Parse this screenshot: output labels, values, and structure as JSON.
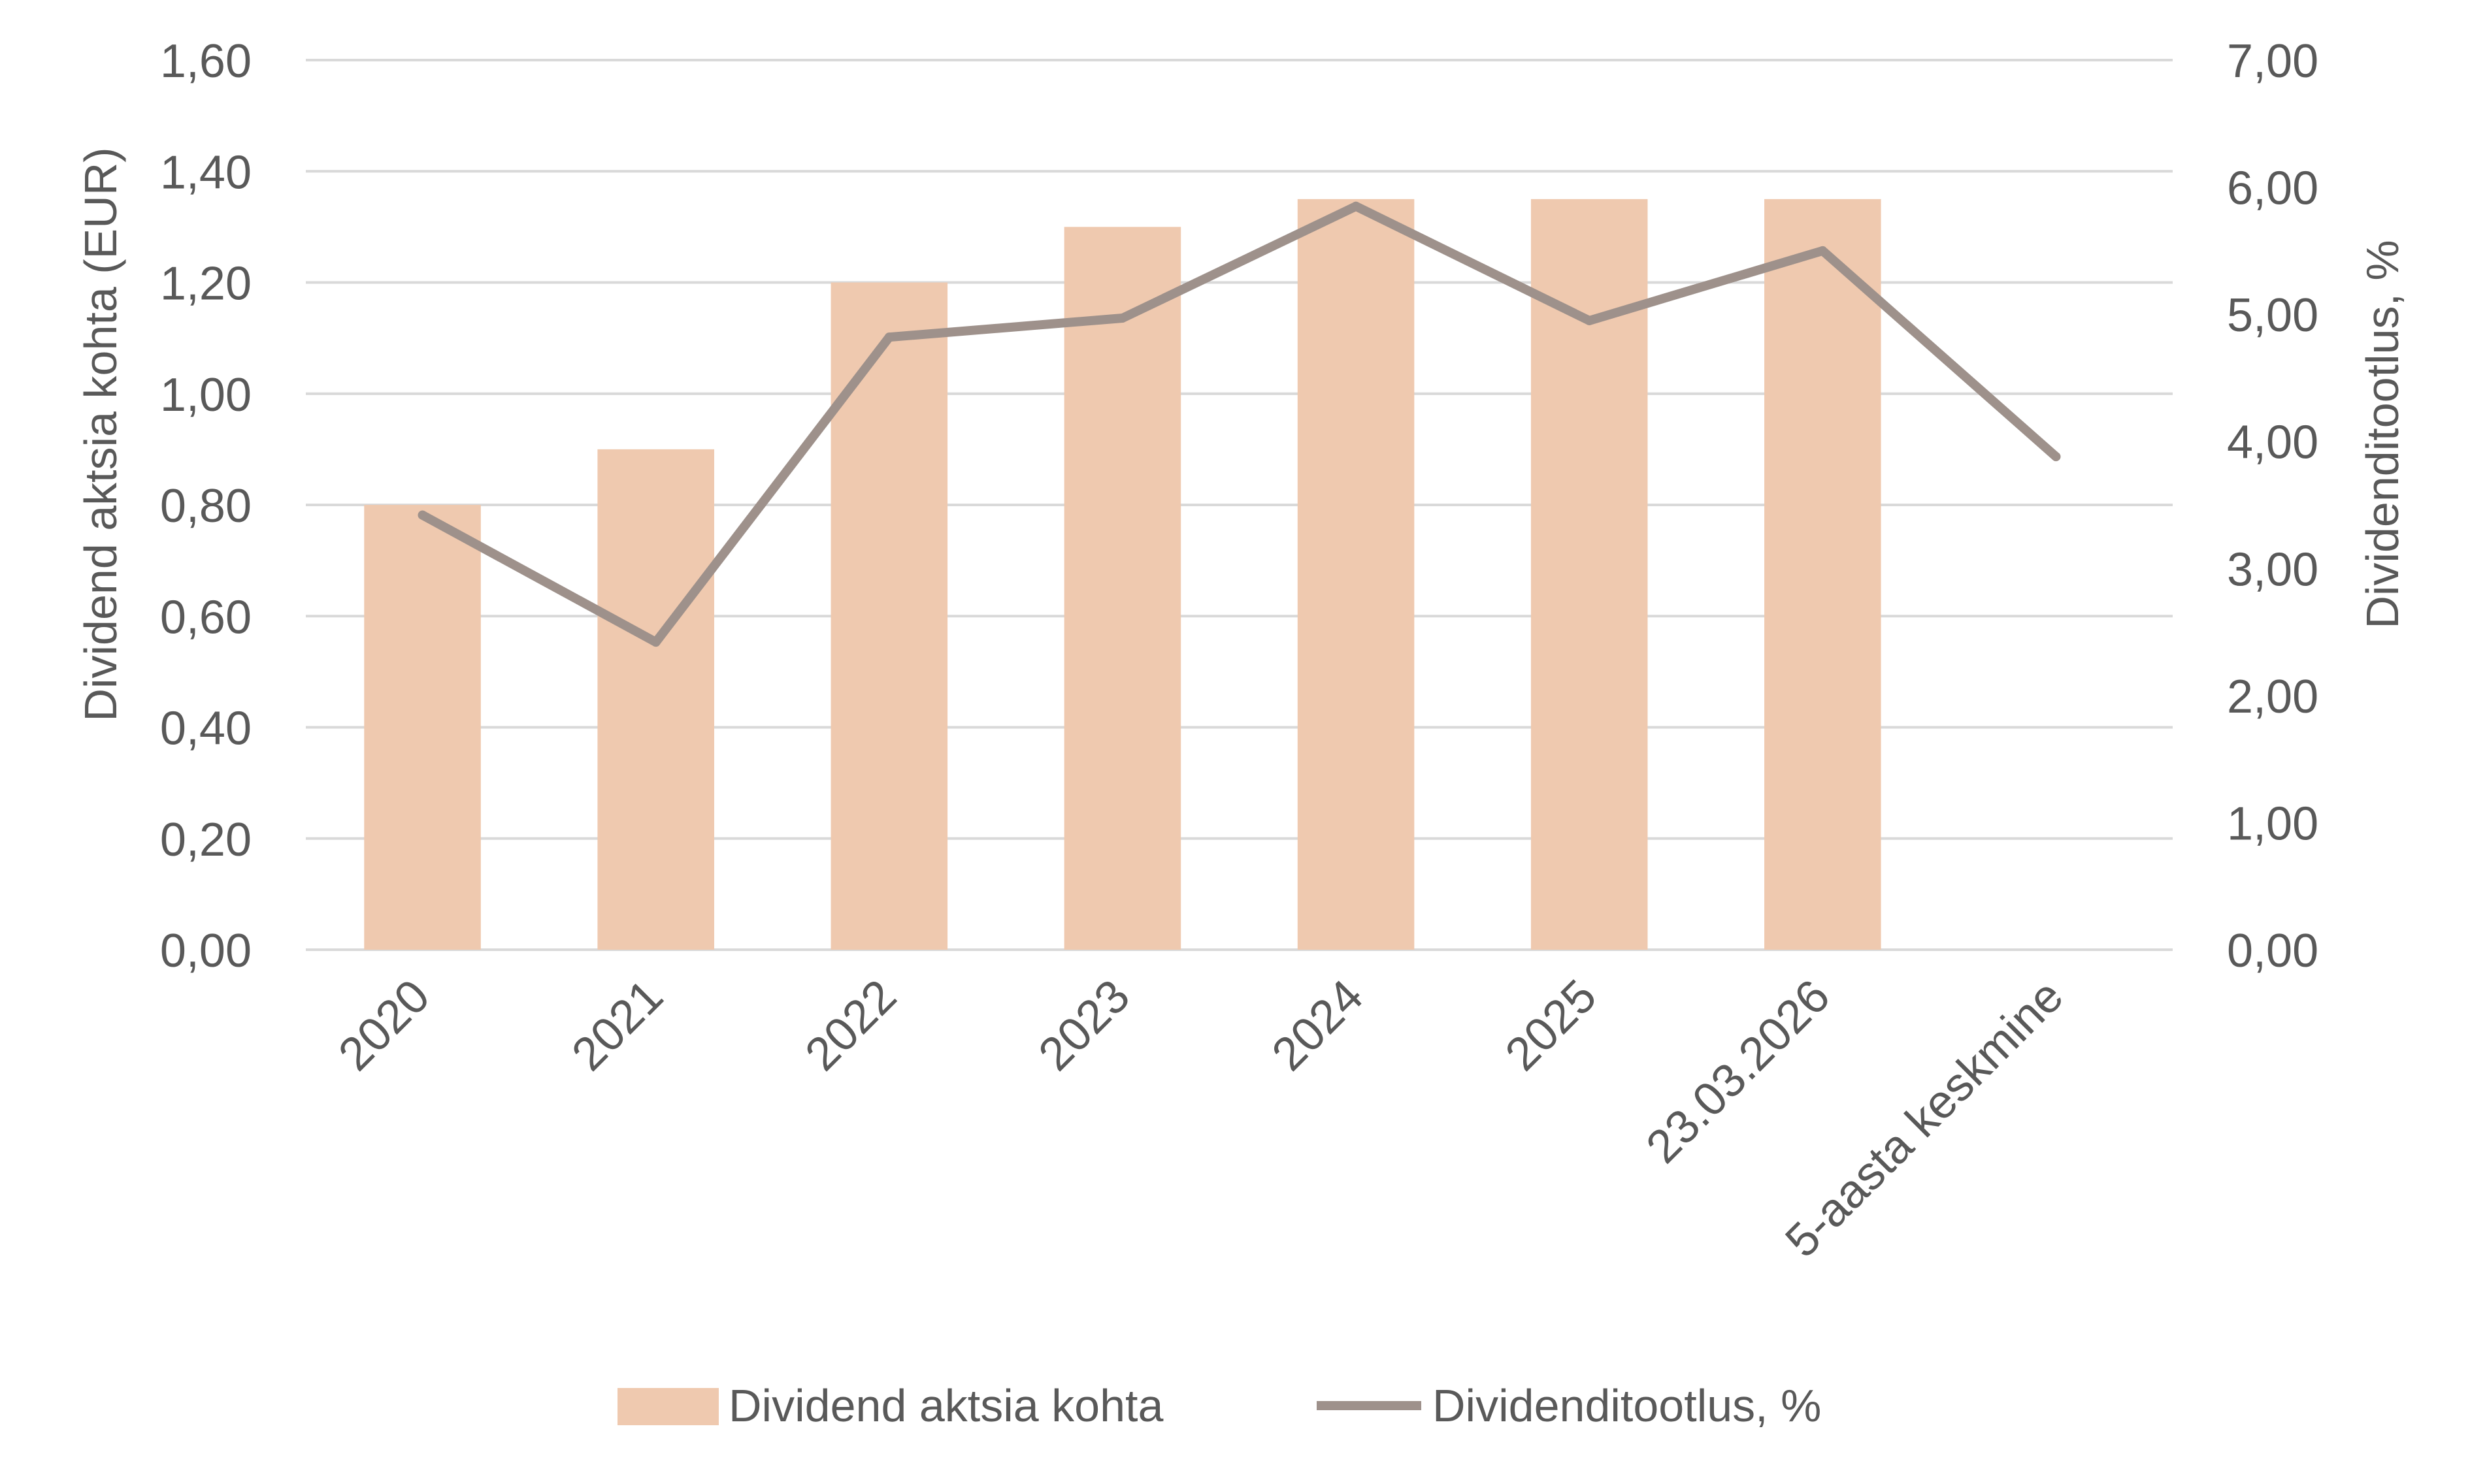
{
  "colors": {
    "bar": "#EFC9AF",
    "line": "#9E918B",
    "grid": "#D9D9D9",
    "text": "#595959",
    "background": "#FFFFFF"
  },
  "chart_data": {
    "type": "bar+line",
    "categories": [
      "2020",
      "2021",
      "2022",
      "2023",
      "2024",
      "2025",
      "23.03.2026",
      "5-aasta keskmine"
    ],
    "series": [
      {
        "name": "Dividend aktsia kohta",
        "type": "bar",
        "axis": "left",
        "values": [
          0.8,
          0.9,
          1.2,
          1.3,
          1.35,
          1.35,
          1.35,
          null
        ]
      },
      {
        "name": "Dividenditootlus, %",
        "type": "line",
        "axis": "right",
        "values": [
          3.42,
          2.42,
          4.82,
          4.97,
          5.85,
          4.95,
          5.5,
          3.88
        ]
      }
    ],
    "y_left": {
      "label": "Dividend aktsia kohta (EUR)",
      "min": 0,
      "max": 1.6,
      "ticks": [
        "0,00",
        "0,20",
        "0,40",
        "0,60",
        "0,80",
        "1,00",
        "1,20",
        "1,40",
        "1,60"
      ]
    },
    "y_right": {
      "label": "Dividenditootlus, %",
      "min": 0,
      "max": 7,
      "ticks": [
        "0,00",
        "1,00",
        "2,00",
        "3,00",
        "4,00",
        "5,00",
        "6,00",
        "7,00"
      ]
    },
    "grid": true,
    "legend": "bottom",
    "legend_entries": [
      "Dividend aktsia kohta",
      "Dividenditootlus, %"
    ]
  }
}
